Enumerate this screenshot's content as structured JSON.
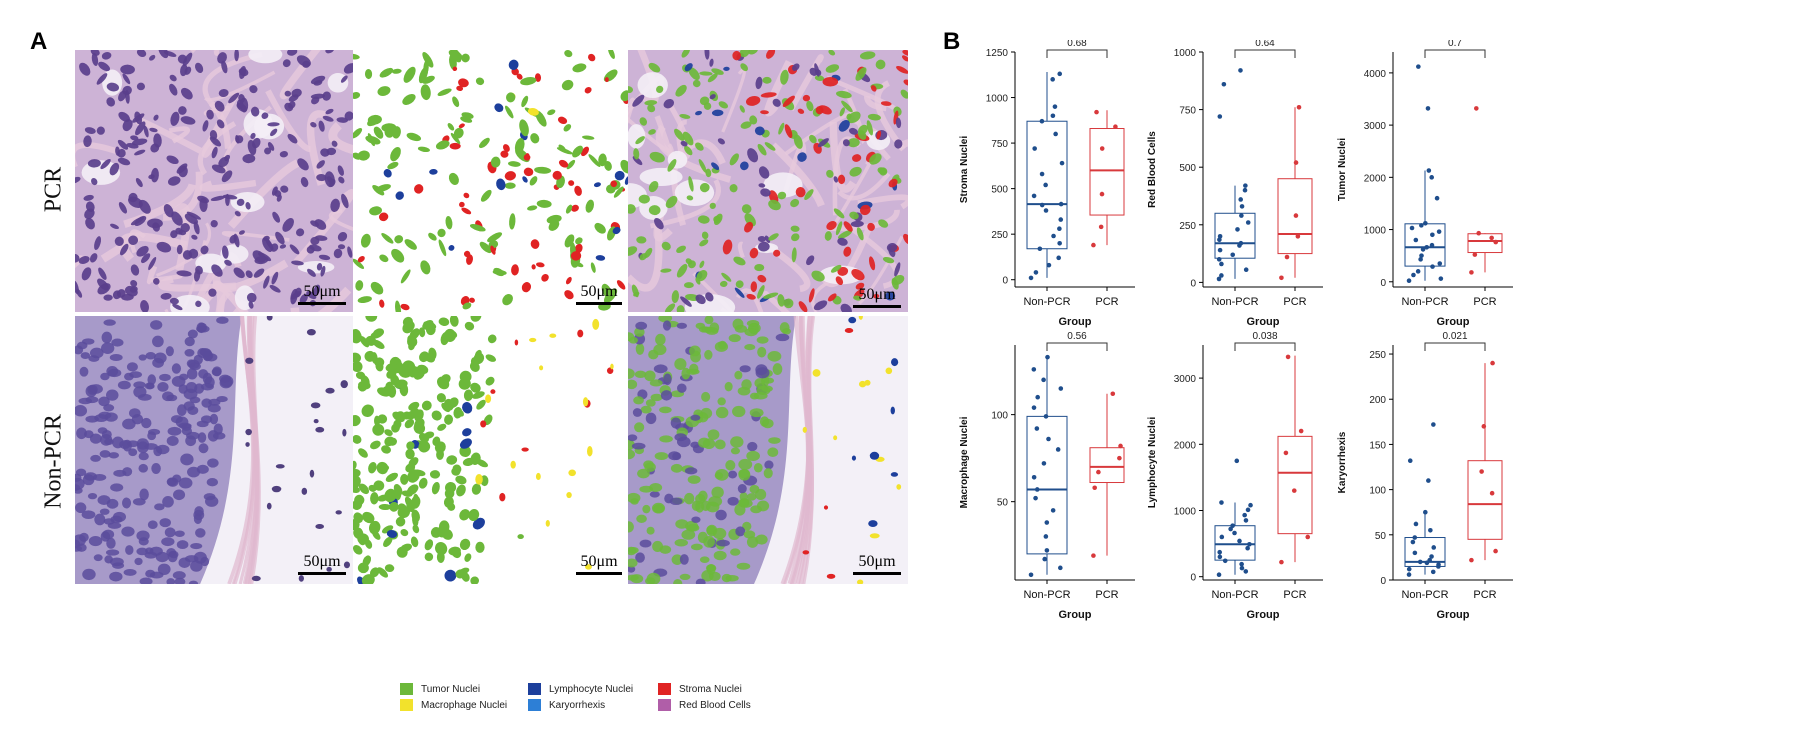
{
  "panels": {
    "a": "A",
    "b": "B"
  },
  "rows": [
    "PCR",
    "Non-PCR"
  ],
  "scalebar_label": "50μm",
  "legend": [
    {
      "label": "Tumor Nuclei",
      "color": "#6cb83a"
    },
    {
      "label": "Lymphocyte Nuclei",
      "color": "#1d3f9c"
    },
    {
      "label": "Stroma Nuclei",
      "color": "#e02323"
    },
    {
      "label": "Macrophage Nuclei",
      "color": "#f2e22c"
    },
    {
      "label": "Karyorrhexis",
      "color": "#2d7fd6"
    },
    {
      "label": "Red Blood Cells",
      "color": "#b05ea8"
    }
  ],
  "chart_data": [
    {
      "type": "box",
      "ylabel": "Stroma Nuclei",
      "xlabel": "Group",
      "categories": [
        "Non-PCR",
        "PCR"
      ],
      "ylim": [
        -40,
        1250
      ],
      "yticks": [
        0,
        250,
        500,
        750,
        1000,
        1250
      ],
      "pvalue": "0.68",
      "series": [
        {
          "name": "Non-PCR",
          "q1": 170,
          "median": 415,
          "q3": 870,
          "whisker_low": 10,
          "whisker_high": 1140,
          "points": [
            10,
            40,
            80,
            120,
            170,
            200,
            240,
            280,
            330,
            380,
            410,
            415,
            460,
            520,
            580,
            640,
            720,
            800,
            870,
            900,
            950,
            1100,
            1130
          ]
        },
        {
          "name": "PCR",
          "q1": 355,
          "median": 600,
          "q3": 830,
          "whisker_low": 190,
          "whisker_high": 930,
          "points": [
            190,
            290,
            470,
            720,
            840,
            920
          ]
        }
      ]
    },
    {
      "type": "box",
      "ylabel": "Red Blood Cells",
      "xlabel": "Group",
      "categories": [
        "Non-PCR",
        "PCR"
      ],
      "ylim": [
        -20,
        1000
      ],
      "yticks": [
        0,
        250,
        500,
        750,
        1000
      ],
      "pvalue": "0.64",
      "series": [
        {
          "name": "Non-PCR",
          "q1": 105,
          "median": 170,
          "q3": 300,
          "whisker_low": 15,
          "whisker_high": 420,
          "points": [
            15,
            30,
            55,
            80,
            100,
            120,
            140,
            160,
            170,
            185,
            200,
            230,
            260,
            290,
            330,
            360,
            400,
            420,
            720,
            860,
            920
          ]
        },
        {
          "name": "PCR",
          "q1": 125,
          "median": 210,
          "q3": 450,
          "whisker_low": 20,
          "whisker_high": 760,
          "points": [
            20,
            110,
            200,
            290,
            520,
            760
          ]
        }
      ]
    },
    {
      "type": "box",
      "ylabel": "Tumor Nuclei",
      "xlabel": "Group",
      "categories": [
        "Non-PCR",
        "PCR"
      ],
      "ylim": [
        -100,
        4400
      ],
      "yticks": [
        0,
        1000,
        2000,
        3000,
        4000
      ],
      "pvalue": "0.7",
      "series": [
        {
          "name": "Non-PCR",
          "q1": 300,
          "median": 660,
          "q3": 1110,
          "whisker_low": 20,
          "whisker_high": 2130,
          "points": [
            20,
            60,
            130,
            200,
            290,
            350,
            430,
            500,
            620,
            660,
            700,
            800,
            900,
            960,
            1030,
            1080,
            1120,
            1600,
            2000,
            2130,
            3320,
            4120
          ]
        },
        {
          "name": "PCR",
          "q1": 560,
          "median": 780,
          "q3": 920,
          "whisker_low": 180,
          "whisker_high": 930,
          "points": [
            180,
            520,
            760,
            840,
            930,
            3320
          ]
        }
      ]
    },
    {
      "type": "box",
      "ylabel": "Macrophage Nuclei",
      "xlabel": "Group",
      "categories": [
        "Non-PCR",
        "PCR"
      ],
      "ylim": [
        5,
        140
      ],
      "yticks": [
        50,
        100
      ],
      "pvalue": "0.56",
      "series": [
        {
          "name": "Non-PCR",
          "q1": 20,
          "median": 57,
          "q3": 99,
          "whisker_low": 8,
          "whisker_high": 133,
          "points": [
            8,
            12,
            17,
            22,
            30,
            38,
            45,
            52,
            57,
            64,
            72,
            80,
            86,
            92,
            99,
            104,
            110,
            115,
            120,
            126,
            133
          ]
        },
        {
          "name": "PCR",
          "q1": 61,
          "median": 70,
          "q3": 81,
          "whisker_low": 19,
          "whisker_high": 112,
          "points": [
            19,
            58,
            67,
            75,
            82,
            112
          ]
        }
      ]
    },
    {
      "type": "box",
      "ylabel": "Lymphocyte Nuclei",
      "xlabel": "Group",
      "categories": [
        "Non-PCR",
        "PCR"
      ],
      "ylim": [
        -50,
        3500
      ],
      "yticks": [
        0,
        1000,
        2000,
        3000
      ],
      "pvalue": "0.038",
      "series": [
        {
          "name": "Non-PCR",
          "q1": 250,
          "median": 490,
          "q3": 770,
          "whisker_low": 30,
          "whisker_high": 1120,
          "points": [
            30,
            80,
            130,
            190,
            240,
            300,
            370,
            430,
            490,
            540,
            600,
            660,
            720,
            770,
            850,
            930,
            1010,
            1080,
            1120,
            1750
          ]
        },
        {
          "name": "PCR",
          "q1": 650,
          "median": 1570,
          "q3": 2120,
          "whisker_low": 220,
          "whisker_high": 3340,
          "points": [
            220,
            600,
            1300,
            1870,
            2200,
            3320
          ]
        }
      ]
    },
    {
      "type": "box",
      "ylabel": "Karyorrhexis",
      "xlabel": "Group",
      "categories": [
        "Non-PCR",
        "PCR"
      ],
      "ylim": [
        0,
        260
      ],
      "yticks": [
        0,
        50,
        100,
        150,
        200,
        250
      ],
      "pvalue": "0.021",
      "series": [
        {
          "name": "Non-PCR",
          "q1": 15,
          "median": 20,
          "q3": 47,
          "whisker_low": 6,
          "whisker_high": 75,
          "points": [
            6,
            9,
            12,
            15,
            17,
            19,
            20,
            22,
            26,
            30,
            36,
            42,
            47,
            55,
            62,
            75,
            110,
            132,
            172
          ]
        },
        {
          "name": "PCR",
          "q1": 45,
          "median": 84,
          "q3": 132,
          "whisker_low": 22,
          "whisker_high": 240,
          "points": [
            22,
            32,
            96,
            120,
            170,
            240
          ]
        }
      ]
    }
  ]
}
